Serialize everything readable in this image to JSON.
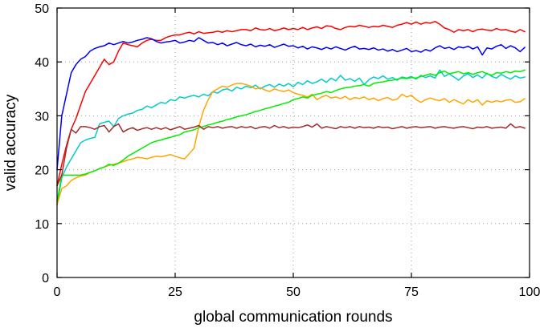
{
  "chart_data": {
    "type": "line",
    "title": "",
    "xlabel": "global communication rounds",
    "ylabel": "valid accuracy",
    "xlim": [
      0,
      100
    ],
    "ylim": [
      0,
      50
    ],
    "xticks": [
      0,
      25,
      50,
      75,
      100
    ],
    "yticks": [
      0,
      10,
      20,
      30,
      40,
      50
    ],
    "grid": true,
    "legend": "none",
    "series": [
      {
        "color": "#ff0000",
        "x": [
          0,
          1,
          2,
          3,
          4,
          5,
          6,
          7,
          8,
          9,
          10,
          11,
          12,
          13,
          14,
          15,
          16,
          17,
          18,
          19,
          20,
          21,
          22,
          23,
          24,
          25,
          26,
          27,
          28,
          29,
          30,
          31,
          32,
          33,
          34,
          35,
          36,
          37,
          38,
          39,
          40,
          41,
          42,
          43,
          44,
          45,
          46,
          47,
          48,
          49,
          50,
          51,
          52,
          53,
          54,
          55,
          56,
          57,
          58,
          59,
          60,
          61,
          62,
          63,
          64,
          65,
          66,
          67,
          68,
          69,
          70,
          71,
          72,
          73,
          74,
          75,
          76,
          77,
          78,
          79,
          80,
          81,
          82,
          83,
          84,
          85,
          86,
          87,
          88,
          89,
          90,
          91,
          92,
          93,
          94,
          95,
          96,
          97,
          98,
          99
        ],
        "values": [
          17.0,
          21.0,
          24.5,
          27.5,
          29.5,
          32.0,
          34.5,
          36.0,
          37.5,
          39.0,
          40.5,
          39.5,
          40.0,
          42.0,
          43.5,
          43.2,
          43.0,
          42.8,
          43.5,
          44.0,
          44.2,
          44.0,
          44.0,
          44.5,
          44.8,
          45.0,
          45.0,
          45.3,
          45.5,
          45.2,
          45.6,
          45.3,
          45.4,
          45.5,
          45.7,
          45.5,
          45.8,
          45.6,
          45.8,
          46.0,
          46.0,
          45.8,
          46.3,
          46.0,
          45.9,
          46.2,
          45.8,
          46.0,
          46.3,
          46.0,
          46.2,
          46.0,
          46.4,
          46.0,
          46.3,
          46.5,
          46.2,
          46.7,
          46.6,
          46.2,
          46.0,
          46.4,
          46.6,
          46.5,
          46.8,
          46.6,
          46.4,
          46.6,
          46.5,
          46.8,
          46.6,
          46.4,
          46.8,
          47.0,
          47.3,
          47.0,
          47.4,
          47.0,
          47.3,
          47.2,
          47.5,
          47.0,
          46.3,
          46.0,
          45.5,
          46.0,
          45.8,
          46.0,
          45.6,
          46.0,
          46.1,
          45.9,
          45.8,
          46.2,
          45.9,
          46.0,
          45.7,
          45.5,
          46.0,
          45.6
        ]
      },
      {
        "color": "#0000ff",
        "x": [
          0,
          1,
          2,
          3,
          4,
          5,
          6,
          7,
          8,
          9,
          10,
          11,
          12,
          13,
          14,
          15,
          16,
          17,
          18,
          19,
          20,
          21,
          22,
          23,
          24,
          25,
          26,
          27,
          28,
          29,
          30,
          31,
          32,
          33,
          34,
          35,
          36,
          37,
          38,
          39,
          40,
          41,
          42,
          43,
          44,
          45,
          46,
          47,
          48,
          49,
          50,
          51,
          52,
          53,
          54,
          55,
          56,
          57,
          58,
          59,
          60,
          61,
          62,
          63,
          64,
          65,
          66,
          67,
          68,
          69,
          70,
          71,
          72,
          73,
          74,
          75,
          76,
          77,
          78,
          79,
          80,
          81,
          82,
          83,
          84,
          85,
          86,
          87,
          88,
          89,
          90,
          91,
          92,
          93,
          94,
          95,
          96,
          97,
          98,
          99
        ],
        "values": [
          20.0,
          30.0,
          34.0,
          38.0,
          39.5,
          40.5,
          41.0,
          42.0,
          42.5,
          42.8,
          43.0,
          43.5,
          43.2,
          43.5,
          43.8,
          43.5,
          43.7,
          44.0,
          44.2,
          44.5,
          44.3,
          43.8,
          43.5,
          43.7,
          43.8,
          44.0,
          43.5,
          43.7,
          44.0,
          43.8,
          44.5,
          44.0,
          43.5,
          43.6,
          43.2,
          43.5,
          43.0,
          43.3,
          43.6,
          43.2,
          43.0,
          43.3,
          42.8,
          43.1,
          42.9,
          43.2,
          42.7,
          43.0,
          43.3,
          42.9,
          43.0,
          42.6,
          42.9,
          42.4,
          42.8,
          42.6,
          42.3,
          42.7,
          42.4,
          42.8,
          42.5,
          42.2,
          42.6,
          42.9,
          42.4,
          42.5,
          42.3,
          42.6,
          42.2,
          42.4,
          42.0,
          42.3,
          41.9,
          42.2,
          42.5,
          41.9,
          42.1,
          41.8,
          42.3,
          42.0,
          42.6,
          43.0,
          42.5,
          42.7,
          42.3,
          42.8,
          42.6,
          42.9,
          42.4,
          42.8,
          41.3,
          42.6,
          42.4,
          42.9,
          43.2,
          42.5,
          43.0,
          42.6,
          41.9,
          42.7
        ]
      },
      {
        "color": "#00cccc",
        "x": [
          0,
          1,
          2,
          3,
          4,
          5,
          6,
          7,
          8,
          9,
          10,
          11,
          12,
          13,
          14,
          15,
          16,
          17,
          18,
          19,
          20,
          21,
          22,
          23,
          24,
          25,
          26,
          27,
          28,
          29,
          30,
          31,
          32,
          33,
          34,
          35,
          36,
          37,
          38,
          39,
          40,
          41,
          42,
          43,
          44,
          45,
          46,
          47,
          48,
          49,
          50,
          51,
          52,
          53,
          54,
          55,
          56,
          57,
          58,
          59,
          60,
          61,
          62,
          63,
          64,
          65,
          66,
          67,
          68,
          69,
          70,
          71,
          72,
          73,
          74,
          75,
          76,
          77,
          78,
          79,
          80,
          81,
          82,
          83,
          84,
          85,
          86,
          87,
          88,
          89,
          90,
          91,
          92,
          93,
          94,
          95,
          96,
          97,
          98,
          99
        ],
        "values": [
          13.5,
          18.5,
          20.5,
          22.0,
          23.5,
          25.0,
          25.5,
          25.8,
          26.0,
          28.5,
          28.8,
          29.0,
          28.0,
          29.5,
          30.0,
          30.3,
          30.5,
          31.0,
          31.2,
          31.8,
          31.5,
          32.0,
          32.5,
          32.3,
          33.0,
          32.8,
          33.5,
          33.3,
          33.6,
          33.8,
          33.5,
          34.0,
          33.7,
          34.5,
          34.2,
          34.8,
          35.0,
          34.6,
          35.3,
          35.0,
          35.5,
          35.2,
          35.7,
          35.0,
          35.5,
          35.8,
          35.3,
          35.9,
          35.5,
          36.0,
          35.4,
          36.2,
          35.8,
          36.5,
          36.0,
          36.3,
          36.8,
          36.2,
          37.0,
          36.5,
          37.5,
          36.6,
          36.9,
          36.4,
          37.0,
          35.8,
          36.7,
          37.2,
          36.9,
          37.4,
          36.8,
          37.1,
          36.6,
          37.2,
          37.0,
          37.3,
          36.8,
          37.5,
          37.1,
          37.4,
          37.0,
          38.5,
          37.3,
          37.8,
          37.2,
          36.6,
          37.4,
          37.8,
          37.1,
          37.6,
          37.0,
          37.9,
          37.3,
          37.0,
          37.7,
          37.2,
          36.8,
          37.4,
          37.0,
          37.2
        ]
      },
      {
        "color": "#ffa500",
        "x": [
          0,
          1,
          2,
          3,
          4,
          5,
          6,
          7,
          8,
          9,
          10,
          11,
          12,
          13,
          14,
          15,
          16,
          17,
          18,
          19,
          20,
          21,
          22,
          23,
          24,
          25,
          26,
          27,
          28,
          29,
          30,
          31,
          32,
          33,
          34,
          35,
          36,
          37,
          38,
          39,
          40,
          41,
          42,
          43,
          44,
          45,
          46,
          47,
          48,
          49,
          50,
          51,
          52,
          53,
          54,
          55,
          56,
          57,
          58,
          59,
          60,
          61,
          62,
          63,
          64,
          65,
          66,
          67,
          68,
          69,
          70,
          71,
          72,
          73,
          74,
          75,
          76,
          77,
          78,
          79,
          80,
          81,
          82,
          83,
          84,
          85,
          86,
          87,
          88,
          89,
          90,
          91,
          92,
          93,
          94,
          95,
          96,
          97,
          98,
          99
        ],
        "values": [
          13.5,
          16.5,
          17.0,
          18.0,
          18.5,
          18.8,
          19.0,
          19.5,
          19.8,
          20.2,
          20.5,
          20.8,
          21.0,
          21.2,
          21.5,
          21.8,
          22.0,
          22.3,
          22.2,
          22.0,
          22.3,
          22.5,
          22.4,
          22.6,
          22.8,
          22.5,
          22.2,
          22.0,
          23.0,
          24.0,
          28.0,
          31.0,
          33.0,
          34.5,
          35.0,
          35.5,
          35.3,
          35.7,
          36.0,
          36.0,
          35.8,
          35.5,
          35.0,
          35.2,
          34.8,
          34.5,
          35.0,
          34.7,
          34.5,
          34.8,
          34.3,
          34.0,
          33.8,
          33.5,
          34.0,
          33.0,
          33.5,
          33.8,
          33.3,
          33.5,
          33.2,
          33.6,
          33.0,
          33.4,
          33.2,
          33.5,
          33.0,
          33.3,
          32.8,
          33.2,
          33.4,
          32.9,
          33.1,
          34.0,
          33.5,
          33.8,
          33.0,
          32.5,
          33.0,
          33.3,
          33.0,
          32.8,
          33.2,
          32.5,
          33.0,
          32.6,
          32.2,
          33.0,
          32.5,
          33.0,
          32.0,
          32.8,
          32.5,
          32.8,
          32.6,
          32.9,
          33.0,
          32.5,
          32.6,
          33.2
        ]
      },
      {
        "color": "#00ee00",
        "x": [
          0,
          1,
          2,
          3,
          4,
          5,
          6,
          7,
          8,
          9,
          10,
          11,
          12,
          13,
          14,
          15,
          16,
          17,
          18,
          19,
          20,
          21,
          22,
          23,
          24,
          25,
          26,
          27,
          28,
          29,
          30,
          31,
          32,
          33,
          34,
          35,
          36,
          37,
          38,
          39,
          40,
          41,
          42,
          43,
          44,
          45,
          46,
          47,
          48,
          49,
          50,
          51,
          52,
          53,
          54,
          55,
          56,
          57,
          58,
          59,
          60,
          61,
          62,
          63,
          64,
          65,
          66,
          67,
          68,
          69,
          70,
          71,
          72,
          73,
          74,
          75,
          76,
          77,
          78,
          79,
          80,
          81,
          82,
          83,
          84,
          85,
          86,
          87,
          88,
          89,
          90,
          91,
          92,
          93,
          94,
          95,
          96,
          97,
          98,
          99
        ],
        "values": [
          14.0,
          19.0,
          19.0,
          19.0,
          19.0,
          19.0,
          19.2,
          19.5,
          19.8,
          20.2,
          20.5,
          21.0,
          20.8,
          21.2,
          21.8,
          22.5,
          23.0,
          23.5,
          24.0,
          24.5,
          25.0,
          25.3,
          25.5,
          25.8,
          26.0,
          26.3,
          26.5,
          27.0,
          27.2,
          27.4,
          27.8,
          28.0,
          28.3,
          28.5,
          28.8,
          29.0,
          29.3,
          29.5,
          29.8,
          30.0,
          30.2,
          30.5,
          30.8,
          31.0,
          31.3,
          31.5,
          31.8,
          32.0,
          32.3,
          32.5,
          33.0,
          33.2,
          33.5,
          33.3,
          33.8,
          34.0,
          34.2,
          34.5,
          34.3,
          34.7,
          35.0,
          35.2,
          35.3,
          35.5,
          35.6,
          35.8,
          35.5,
          36.0,
          36.2,
          36.3,
          36.5,
          36.6,
          36.8,
          37.0,
          36.9,
          37.1,
          37.0,
          37.3,
          37.5,
          37.8,
          37.5,
          38.0,
          38.3,
          37.8,
          38.0,
          38.2,
          37.8,
          38.0,
          37.7,
          38.0,
          38.2,
          37.8,
          37.5,
          38.0,
          37.9,
          38.2,
          38.0,
          38.3,
          38.2,
          38.5
        ]
      },
      {
        "color": "#a52a2a",
        "x": [
          0,
          1,
          2,
          3,
          4,
          5,
          6,
          7,
          8,
          9,
          10,
          11,
          12,
          13,
          14,
          15,
          16,
          17,
          18,
          19,
          20,
          21,
          22,
          23,
          24,
          25,
          26,
          27,
          28,
          29,
          30,
          31,
          32,
          33,
          34,
          35,
          36,
          37,
          38,
          39,
          40,
          41,
          42,
          43,
          44,
          45,
          46,
          47,
          48,
          49,
          50,
          51,
          52,
          53,
          54,
          55,
          56,
          57,
          58,
          59,
          60,
          61,
          62,
          63,
          64,
          65,
          66,
          67,
          68,
          69,
          70,
          71,
          72,
          73,
          74,
          75,
          76,
          77,
          78,
          79,
          80,
          81,
          82,
          83,
          84,
          85,
          86,
          87,
          88,
          89,
          90,
          91,
          92,
          93,
          94,
          95,
          96,
          97,
          98,
          99
        ],
        "values": [
          17.0,
          19.0,
          24.0,
          27.5,
          26.8,
          28.0,
          28.0,
          27.8,
          27.5,
          28.0,
          28.2,
          27.0,
          28.0,
          28.5,
          27.0,
          27.5,
          27.8,
          27.3,
          27.6,
          27.8,
          27.5,
          27.8,
          27.5,
          27.8,
          27.4,
          27.7,
          28.0,
          27.5,
          27.7,
          27.9,
          28.2,
          27.5,
          28.0,
          27.8,
          28.0,
          27.7,
          27.9,
          28.0,
          27.7,
          28.0,
          27.8,
          28.0,
          27.6,
          27.9,
          28.0,
          27.7,
          28.2,
          27.8,
          28.0,
          27.7,
          27.9,
          27.8,
          28.0,
          28.3,
          27.9,
          28.5,
          27.7,
          28.0,
          27.8,
          27.6,
          28.0,
          27.8,
          28.0,
          27.7,
          28.0,
          27.8,
          27.9,
          27.7,
          28.0,
          27.8,
          27.9,
          27.6,
          27.8,
          28.0,
          27.7,
          27.9,
          28.0,
          27.8,
          27.9,
          28.0,
          27.7,
          27.9,
          28.0,
          27.8,
          27.7,
          27.9,
          28.0,
          27.8,
          27.6,
          27.9,
          27.8,
          28.0,
          27.7,
          27.8,
          27.9,
          27.7,
          28.5,
          27.8,
          28.0,
          27.7
        ]
      }
    ]
  }
}
